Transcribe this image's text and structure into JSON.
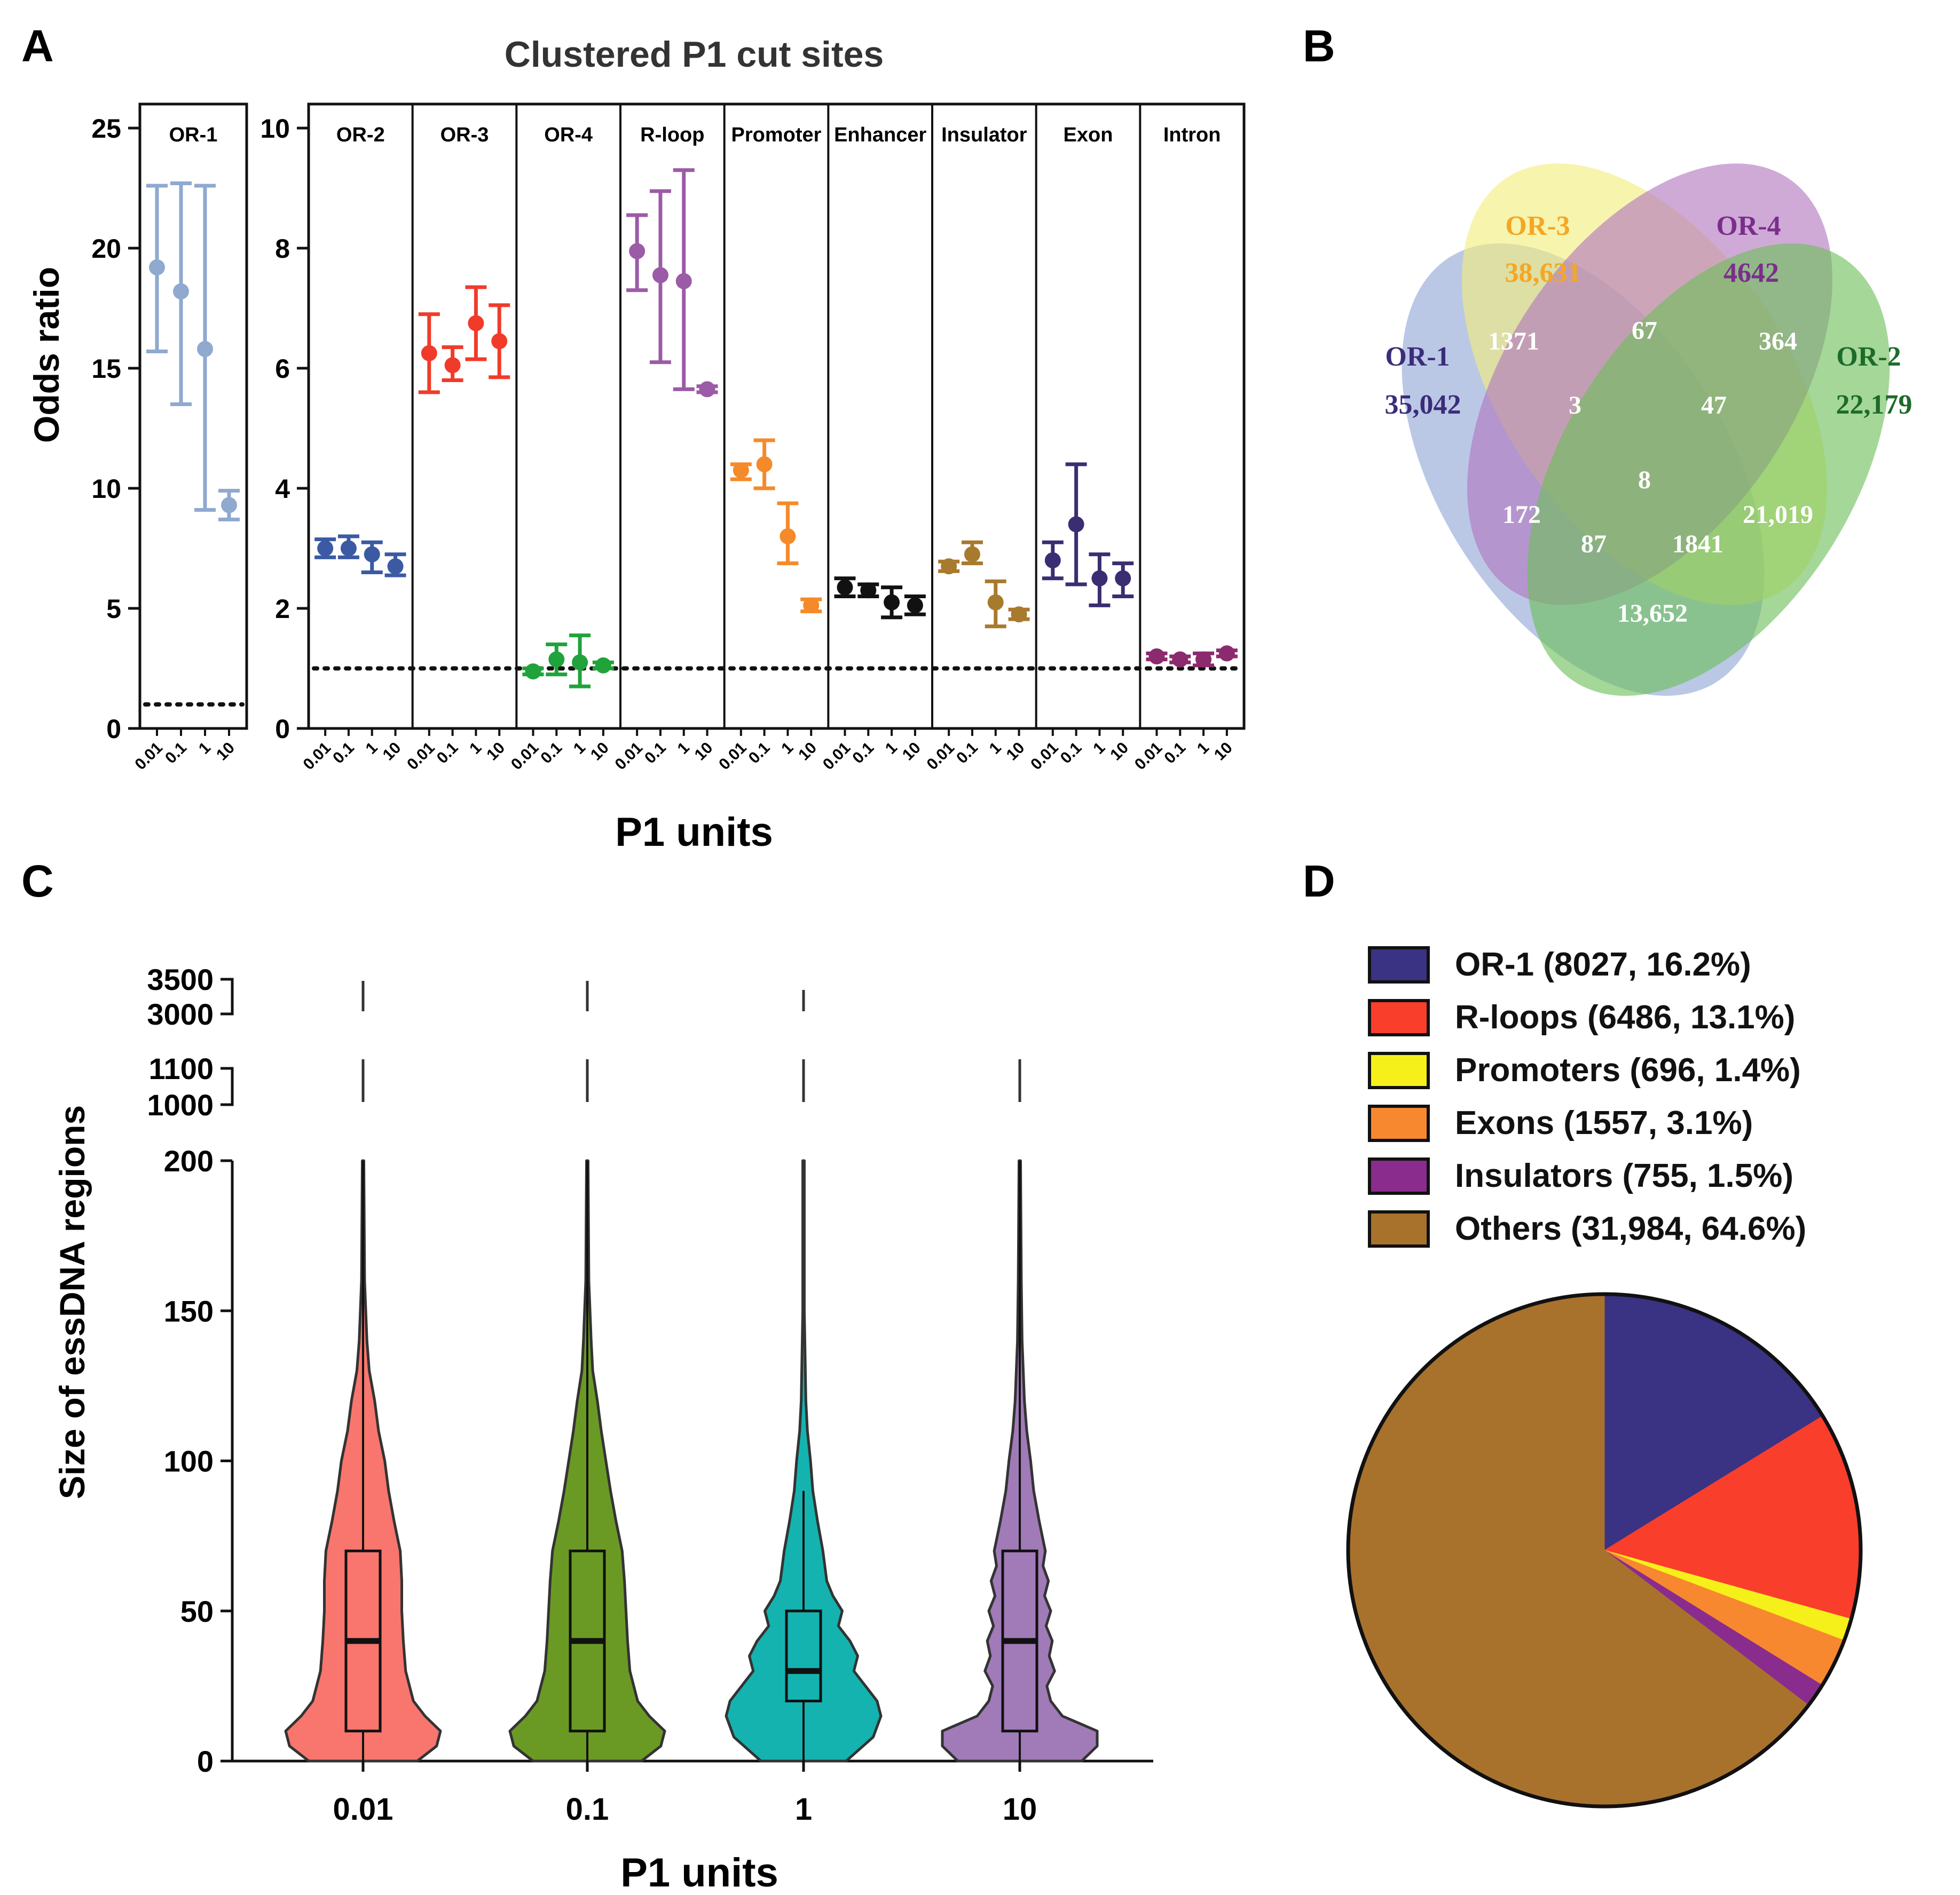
{
  "panel_labels": {
    "A": "A",
    "B": "B",
    "C": "C",
    "D": "D"
  },
  "chart_data": [
    {
      "panel": "A",
      "type": "scatter",
      "title": "Clustered P1 cut sites",
      "xlabel": "P1 units",
      "ylabel": "Odds ratio",
      "reference_line": 1,
      "x_ticks": [
        "0.01",
        "0.1",
        "1",
        "10"
      ],
      "left_axis": {
        "ylim": [
          0,
          26
        ],
        "ticks": [
          "0",
          "5",
          "10",
          "15",
          "20",
          "25"
        ]
      },
      "right_axis": {
        "ylim": [
          0,
          10.4
        ],
        "ticks": [
          "0",
          "2",
          "4",
          "6",
          "8",
          "10"
        ]
      },
      "groups": [
        {
          "name": "OR-1",
          "color": "#8fa9cf",
          "axis": "left",
          "points": [
            {
              "x": "0.01",
              "y": 19.2,
              "lo": 15.7,
              "hi": 22.6
            },
            {
              "x": "0.1",
              "y": 18.2,
              "lo": 13.5,
              "hi": 22.7
            },
            {
              "x": "1",
              "y": 15.8,
              "lo": 9.1,
              "hi": 22.6
            },
            {
              "x": "10",
              "y": 9.3,
              "lo": 8.7,
              "hi": 9.9
            }
          ]
        },
        {
          "name": "OR-2",
          "color": "#3b5aa3",
          "axis": "right",
          "points": [
            {
              "x": "0.01",
              "y": 3.0,
              "lo": 2.85,
              "hi": 3.15
            },
            {
              "x": "0.1",
              "y": 3.0,
              "lo": 2.85,
              "hi": 3.2
            },
            {
              "x": "1",
              "y": 2.9,
              "lo": 2.6,
              "hi": 3.1
            },
            {
              "x": "10",
              "y": 2.7,
              "lo": 2.55,
              "hi": 2.9
            }
          ]
        },
        {
          "name": "OR-3",
          "color": "#f03b2a",
          "axis": "right",
          "points": [
            {
              "x": "0.01",
              "y": 6.25,
              "lo": 5.6,
              "hi": 6.9
            },
            {
              "x": "0.1",
              "y": 6.05,
              "lo": 5.8,
              "hi": 6.35
            },
            {
              "x": "1",
              "y": 6.75,
              "lo": 6.15,
              "hi": 7.35
            },
            {
              "x": "10",
              "y": 6.45,
              "lo": 5.85,
              "hi": 7.05
            }
          ]
        },
        {
          "name": "OR-4",
          "color": "#1fa33a",
          "axis": "right",
          "points": [
            {
              "x": "0.01",
              "y": 0.95,
              "lo": 0.9,
              "hi": 1.0
            },
            {
              "x": "0.1",
              "y": 1.15,
              "lo": 0.9,
              "hi": 1.4
            },
            {
              "x": "1",
              "y": 1.1,
              "lo": 0.7,
              "hi": 1.55
            },
            {
              "x": "10",
              "y": 1.05,
              "lo": 1.0,
              "hi": 1.1
            }
          ]
        },
        {
          "name": "R-loop",
          "color": "#9b5ba6",
          "axis": "right",
          "points": [
            {
              "x": "0.01",
              "y": 7.95,
              "lo": 7.3,
              "hi": 8.55
            },
            {
              "x": "0.1",
              "y": 7.55,
              "lo": 6.1,
              "hi": 8.95
            },
            {
              "x": "1",
              "y": 7.45,
              "lo": 5.65,
              "hi": 9.3
            },
            {
              "x": "10",
              "y": 5.65,
              "lo": 5.6,
              "hi": 5.7
            }
          ]
        },
        {
          "name": "Promoter",
          "color": "#f58a2a",
          "axis": "right",
          "points": [
            {
              "x": "0.01",
              "y": 4.3,
              "lo": 4.15,
              "hi": 4.4
            },
            {
              "x": "0.1",
              "y": 4.4,
              "lo": 4.0,
              "hi": 4.8
            },
            {
              "x": "1",
              "y": 3.2,
              "lo": 2.75,
              "hi": 3.75
            },
            {
              "x": "10",
              "y": 2.05,
              "lo": 1.95,
              "hi": 2.15
            }
          ]
        },
        {
          "name": "Enhancer",
          "color": "#111111",
          "axis": "right",
          "points": [
            {
              "x": "0.01",
              "y": 2.35,
              "lo": 2.2,
              "hi": 2.5
            },
            {
              "x": "0.1",
              "y": 2.3,
              "lo": 2.2,
              "hi": 2.4
            },
            {
              "x": "1",
              "y": 2.1,
              "lo": 1.85,
              "hi": 2.35
            },
            {
              "x": "10",
              "y": 2.05,
              "lo": 1.9,
              "hi": 2.2
            }
          ]
        },
        {
          "name": "Insulator",
          "color": "#a87a2e",
          "axis": "right",
          "points": [
            {
              "x": "0.01",
              "y": 2.7,
              "lo": 2.62,
              "hi": 2.78
            },
            {
              "x": "0.1",
              "y": 2.9,
              "lo": 2.75,
              "hi": 3.1
            },
            {
              "x": "1",
              "y": 2.1,
              "lo": 1.7,
              "hi": 2.45
            },
            {
              "x": "10",
              "y": 1.9,
              "lo": 1.82,
              "hi": 1.98
            }
          ]
        },
        {
          "name": "Exon",
          "color": "#3b2d72",
          "axis": "right",
          "points": [
            {
              "x": "0.01",
              "y": 2.8,
              "lo": 2.5,
              "hi": 3.1
            },
            {
              "x": "0.1",
              "y": 3.4,
              "lo": 2.4,
              "hi": 4.4
            },
            {
              "x": "1",
              "y": 2.5,
              "lo": 2.05,
              "hi": 2.9
            },
            {
              "x": "10",
              "y": 2.5,
              "lo": 2.2,
              "hi": 2.75
            }
          ]
        },
        {
          "name": "Intron",
          "color": "#8c2a6e",
          "axis": "right",
          "points": [
            {
              "x": "0.01",
              "y": 1.2,
              "lo": 1.15,
              "hi": 1.25
            },
            {
              "x": "0.1",
              "y": 1.15,
              "lo": 1.1,
              "hi": 1.2
            },
            {
              "x": "1",
              "y": 1.15,
              "lo": 1.05,
              "hi": 1.25
            },
            {
              "x": "10",
              "y": 1.25,
              "lo": 1.2,
              "hi": 1.3
            }
          ]
        }
      ]
    },
    {
      "panel": "B",
      "type": "venn",
      "sets": [
        {
          "name": "OR-1",
          "count": "35,042",
          "color": "#8fa6d6",
          "text_color": "#3b2d7a"
        },
        {
          "name": "OR-3",
          "count": "38,631",
          "color": "#f2ee7a",
          "text_color": "#f5a623"
        },
        {
          "name": "OR-4",
          "count": "4642",
          "color": "#b276bf",
          "text_color": "#7a2e8c"
        },
        {
          "name": "OR-2",
          "count": "22,179",
          "color": "#6cbf58",
          "text_color": "#1d6b2a"
        }
      ],
      "intersections": [
        {
          "sets": "OR-1&OR-3",
          "count": "1371"
        },
        {
          "sets": "OR-3&OR-4",
          "count": "67"
        },
        {
          "sets": "OR-4&OR-2",
          "count": "364"
        },
        {
          "sets": "OR-1&OR-3&OR-4",
          "count": "3"
        },
        {
          "sets": "OR-3&OR-4&OR-2",
          "count": "47"
        },
        {
          "sets": "OR-1&OR-3&OR-4&OR-2",
          "count": "8"
        },
        {
          "sets": "OR-1&OR-4",
          "count": "172"
        },
        {
          "sets": "OR-3&OR-2",
          "count": "21,019"
        },
        {
          "sets": "OR-1&OR-4&OR-2",
          "count": "87"
        },
        {
          "sets": "OR-1&OR-3&OR-2",
          "count": "1841"
        },
        {
          "sets": "OR-1&OR-2",
          "count": "13,652"
        }
      ]
    },
    {
      "panel": "C",
      "type": "violin",
      "xlabel": "P1 units",
      "ylabel": "Size of essDNA regions",
      "categories": [
        "0.01",
        "0.1",
        "1",
        "10"
      ],
      "colors": [
        "#f8766d",
        "#6b9a24",
        "#14b3b0",
        "#a17ab8"
      ],
      "y_ticks": [
        "0",
        "50",
        "100",
        "150",
        "200"
      ],
      "broken_ticks": [
        "1000",
        "1100",
        "3000",
        "3500"
      ],
      "ylim": [
        0,
        200
      ],
      "outlier_segments": [
        [
          "1100",
          "3500"
        ],
        [
          "1100",
          "3500"
        ],
        [
          "1100",
          "3000"
        ],
        [
          "1100"
        ]
      ],
      "boxes": [
        {
          "q1": 10,
          "median": 40,
          "q3": 70,
          "whisker_high": 200
        },
        {
          "q1": 10,
          "median": 40,
          "q3": 70,
          "whisker_high": 200
        },
        {
          "q1": 20,
          "median": 30,
          "q3": 50,
          "whisker_high": 90
        },
        {
          "q1": 10,
          "median": 40,
          "q3": 70,
          "whisker_high": 200
        }
      ],
      "violin_profiles": [
        [
          [
            0,
            0.7
          ],
          [
            5,
            0.95
          ],
          [
            10,
            1.0
          ],
          [
            15,
            0.8
          ],
          [
            20,
            0.65
          ],
          [
            30,
            0.55
          ],
          [
            40,
            0.52
          ],
          [
            50,
            0.5
          ],
          [
            60,
            0.5
          ],
          [
            70,
            0.48
          ],
          [
            80,
            0.4
          ],
          [
            90,
            0.33
          ],
          [
            100,
            0.28
          ],
          [
            110,
            0.2
          ],
          [
            120,
            0.15
          ],
          [
            130,
            0.08
          ],
          [
            140,
            0.05
          ],
          [
            160,
            0.02
          ],
          [
            200,
            0.01
          ]
        ],
        [
          [
            0,
            0.7
          ],
          [
            5,
            0.95
          ],
          [
            10,
            1.0
          ],
          [
            15,
            0.8
          ],
          [
            20,
            0.65
          ],
          [
            30,
            0.55
          ],
          [
            40,
            0.52
          ],
          [
            50,
            0.5
          ],
          [
            60,
            0.48
          ],
          [
            70,
            0.45
          ],
          [
            80,
            0.37
          ],
          [
            90,
            0.3
          ],
          [
            100,
            0.24
          ],
          [
            110,
            0.18
          ],
          [
            120,
            0.13
          ],
          [
            130,
            0.07
          ],
          [
            140,
            0.05
          ],
          [
            160,
            0.02
          ],
          [
            200,
            0.01
          ]
        ],
        [
          [
            0,
            0.55
          ],
          [
            8,
            0.9
          ],
          [
            15,
            1.0
          ],
          [
            20,
            0.95
          ],
          [
            25,
            0.8
          ],
          [
            30,
            0.65
          ],
          [
            35,
            0.7
          ],
          [
            40,
            0.6
          ],
          [
            45,
            0.45
          ],
          [
            50,
            0.5
          ],
          [
            55,
            0.38
          ],
          [
            60,
            0.3
          ],
          [
            70,
            0.25
          ],
          [
            80,
            0.18
          ],
          [
            90,
            0.12
          ],
          [
            100,
            0.09
          ],
          [
            110,
            0.05
          ],
          [
            120,
            0.03
          ],
          [
            150,
            0.01
          ],
          [
            200,
            0.01
          ]
        ],
        [
          [
            0,
            0.8
          ],
          [
            5,
            1.0
          ],
          [
            10,
            1.0
          ],
          [
            15,
            0.55
          ],
          [
            20,
            0.4
          ],
          [
            25,
            0.35
          ],
          [
            30,
            0.45
          ],
          [
            35,
            0.38
          ],
          [
            40,
            0.42
          ],
          [
            45,
            0.34
          ],
          [
            50,
            0.4
          ],
          [
            55,
            0.32
          ],
          [
            60,
            0.37
          ],
          [
            65,
            0.3
          ],
          [
            70,
            0.33
          ],
          [
            80,
            0.25
          ],
          [
            90,
            0.18
          ],
          [
            100,
            0.14
          ],
          [
            110,
            0.09
          ],
          [
            120,
            0.06
          ],
          [
            140,
            0.03
          ],
          [
            160,
            0.02
          ],
          [
            200,
            0.01
          ]
        ]
      ]
    },
    {
      "panel": "D",
      "type": "pie",
      "slices": [
        {
          "label": "OR-1 (8027, 16.2%)",
          "value": 16.2,
          "color": "#3a3282"
        },
        {
          "label": "R-loops (6486, 13.1%)",
          "value": 13.1,
          "color": "#fa3e2c"
        },
        {
          "label": "Promoters (696, 1.4%)",
          "value": 1.4,
          "color": "#f5f01a"
        },
        {
          "label": "Exons (1557, 3.1%)",
          "value": 3.1,
          "color": "#f7882f"
        },
        {
          "label": "Insulators (755, 1.5%)",
          "value": 1.5,
          "color": "#8a2c8e"
        },
        {
          "label": "Others (31,984, 64.6%)",
          "value": 64.6,
          "color": "#a8722d"
        }
      ]
    }
  ]
}
